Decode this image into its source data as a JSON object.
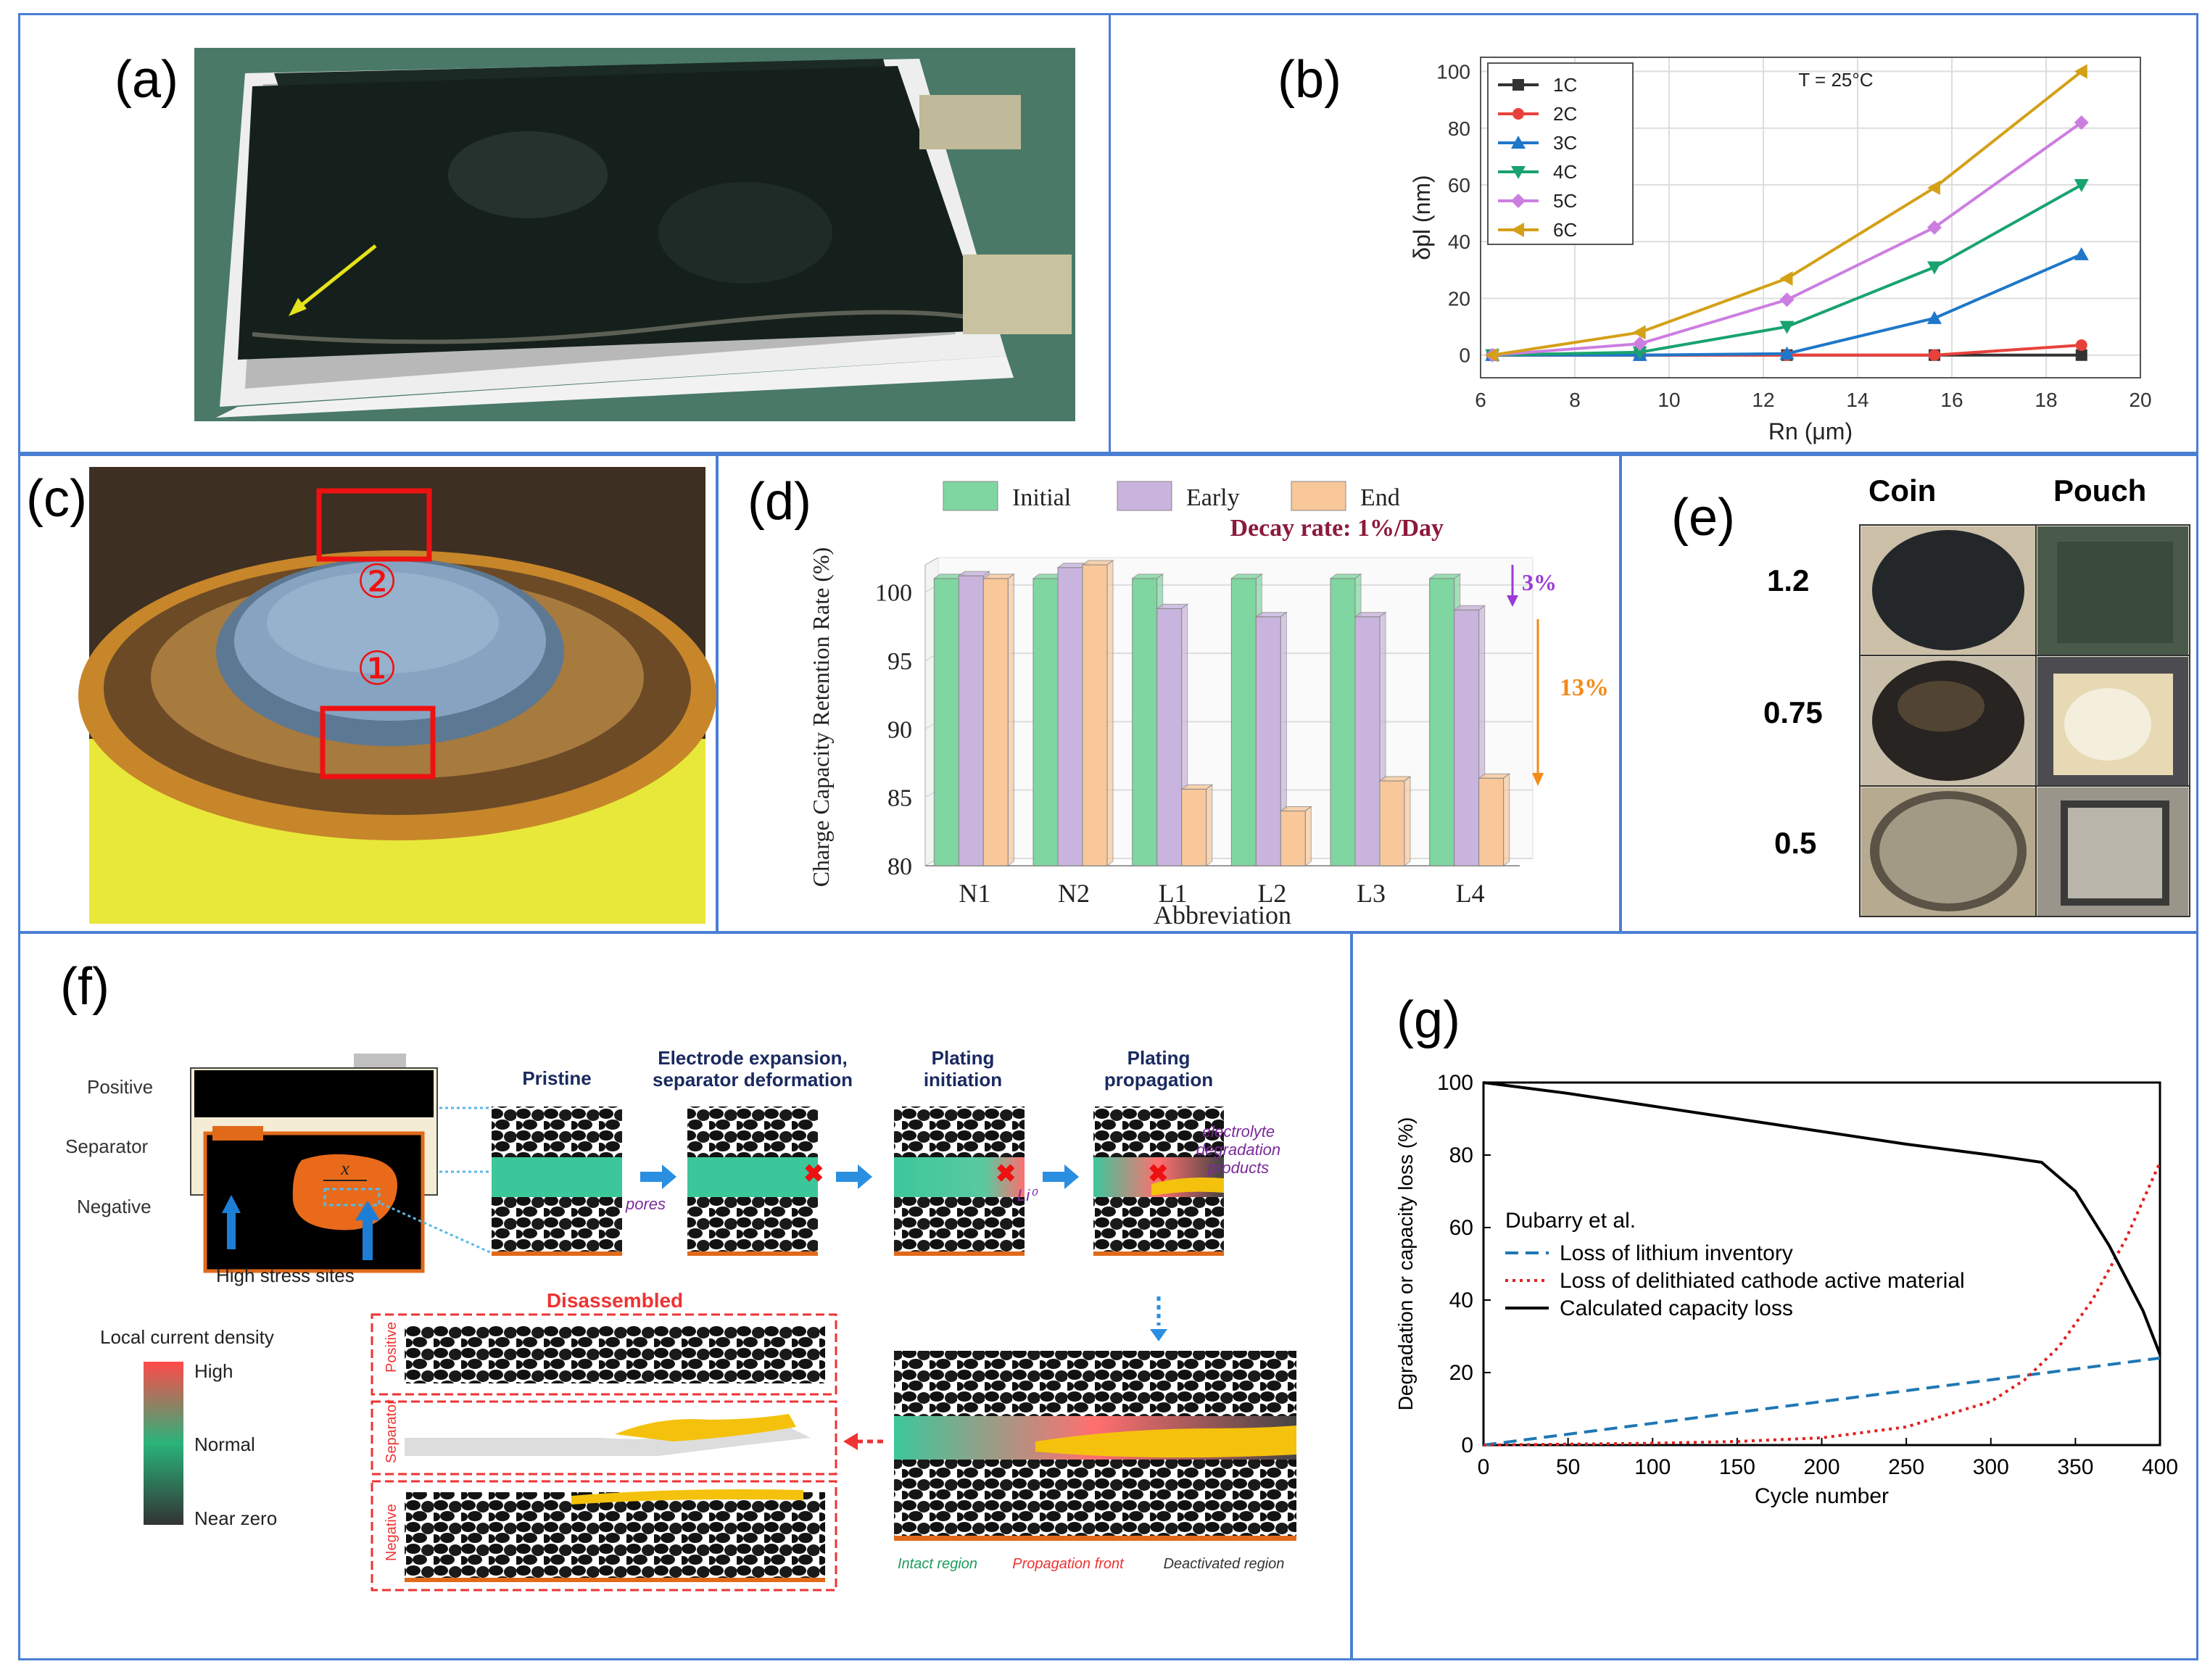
{
  "panels": {
    "a": {
      "label": "(a)"
    },
    "b": {
      "label": "(b)"
    },
    "c": {
      "label": "(c)",
      "marker1": "①",
      "marker2": "②"
    },
    "d": {
      "label": "(d)"
    },
    "e": {
      "label": "(e)",
      "col_coin": "Coin",
      "col_pouch": "Pouch",
      "rows": [
        "1.2",
        "0.75",
        "0.5"
      ]
    },
    "f": {
      "label": "(f)",
      "cell_labels": [
        "Positive",
        "Separator",
        "Negative"
      ],
      "x_label": "x",
      "stress_label": "High stress sites",
      "stage_titles": [
        [
          "Pristine"
        ],
        [
          "Electrode expansion,",
          "separator deformation"
        ],
        [
          "Plating",
          "initiation"
        ],
        [
          "Plating",
          "propagation"
        ]
      ],
      "pores_label": "pores",
      "li0_label": "Li⁰",
      "electrolyte_label": [
        "electrolyte",
        "degradation",
        "products"
      ],
      "disassembled_label": "Disassembled",
      "disassembled_rows": [
        "Positive",
        "Separator",
        "Negative"
      ],
      "legend_title": "Local current density",
      "legend_items": [
        "High",
        "Normal",
        "Near zero"
      ],
      "regions": [
        "Intact region",
        "Propagation front",
        "Deactivated region"
      ]
    },
    "g": {
      "label": "(g)"
    }
  },
  "colors": {
    "border": "#4a7fd4",
    "initial": "#7fd6a0",
    "early": "#c8b4dc",
    "end": "#f8c79a"
  },
  "chart_data": [
    {
      "id": "b",
      "type": "line",
      "title": "T = 25°C",
      "xlabel": "Rn (μm)",
      "ylabel": "δpl (nm)",
      "xlim": [
        6,
        20
      ],
      "ylim": [
        -8,
        105
      ],
      "xticks": [
        6,
        8,
        10,
        12,
        14,
        16,
        18,
        20
      ],
      "yticks": [
        0,
        20,
        40,
        60,
        80,
        100
      ],
      "x": [
        6.25,
        9.38,
        12.5,
        15.63,
        18.75
      ],
      "series": [
        {
          "name": "1C",
          "color": "#333333",
          "marker": "square",
          "values": [
            0,
            0,
            0,
            0,
            0
          ]
        },
        {
          "name": "2C",
          "color": "#e8413c",
          "marker": "circle",
          "values": [
            0,
            0,
            0,
            0,
            3.5
          ]
        },
        {
          "name": "3C",
          "color": "#1f77c9",
          "marker": "triangle-up",
          "values": [
            0,
            0,
            0.5,
            13,
            35.5
          ]
        },
        {
          "name": "4C",
          "color": "#18a36e",
          "marker": "triangle-down",
          "values": [
            0,
            1,
            10,
            31,
            60
          ]
        },
        {
          "name": "5C",
          "color": "#cc7ee0",
          "marker": "diamond",
          "values": [
            0,
            4,
            19.5,
            45,
            82
          ]
        },
        {
          "name": "6C",
          "color": "#d4a017",
          "marker": "triangle-left",
          "values": [
            0,
            8,
            27,
            59,
            100
          ]
        }
      ]
    },
    {
      "id": "d",
      "type": "bar",
      "title": "Decay rate:  1%/Day",
      "xlabel": "Abbreviation",
      "ylabel": "Charge Capacity Retention Rate (%)",
      "ylim": [
        80,
        102
      ],
      "yticks": [
        80,
        85,
        90,
        95,
        100
      ],
      "categories": [
        "N1",
        "N2",
        "L1",
        "L2",
        "L3",
        "L4"
      ],
      "series": [
        {
          "name": "Initial",
          "values": [
            101,
            101,
            101,
            101,
            101,
            101
          ]
        },
        {
          "name": "Early",
          "values": [
            101.2,
            101.8,
            98.8,
            98.2,
            98.2,
            98.7
          ]
        },
        {
          "name": "End",
          "values": [
            101,
            102,
            85.6,
            84,
            86.2,
            86.4
          ]
        }
      ],
      "annotations": [
        "3%",
        "13%"
      ]
    },
    {
      "id": "g",
      "type": "line",
      "xlabel": "Cycle number",
      "ylabel": "Degradation or capacity loss (%)",
      "xlim": [
        0,
        400
      ],
      "ylim": [
        0,
        100
      ],
      "xticks": [
        0,
        50,
        100,
        150,
        200,
        250,
        300,
        350,
        400
      ],
      "yticks": [
        0,
        20,
        40,
        60,
        80,
        100
      ],
      "legend_title": "Dubarry et al.",
      "series": [
        {
          "name": "Loss of lithium inventory",
          "style": "dashed",
          "color": "#1f77b4",
          "x": [
            0,
            400
          ],
          "values": [
            0,
            24
          ]
        },
        {
          "name": "Loss of delithiated cathode active material",
          "style": "dotted",
          "color": "#e32020",
          "x": [
            0,
            100,
            150,
            200,
            250,
            300,
            320,
            340,
            360,
            380,
            400
          ],
          "values": [
            0,
            0.5,
            1,
            2,
            5,
            12,
            18,
            27,
            40,
            57,
            78
          ]
        },
        {
          "name": "Calculated capacity loss",
          "style": "solid",
          "color": "#000000",
          "x": [
            0,
            50,
            100,
            150,
            200,
            250,
            300,
            330,
            350,
            370,
            390,
            400
          ],
          "values": [
            100,
            97,
            93.5,
            90,
            86.5,
            83,
            80,
            78,
            70,
            55,
            37,
            25
          ]
        }
      ]
    }
  ]
}
